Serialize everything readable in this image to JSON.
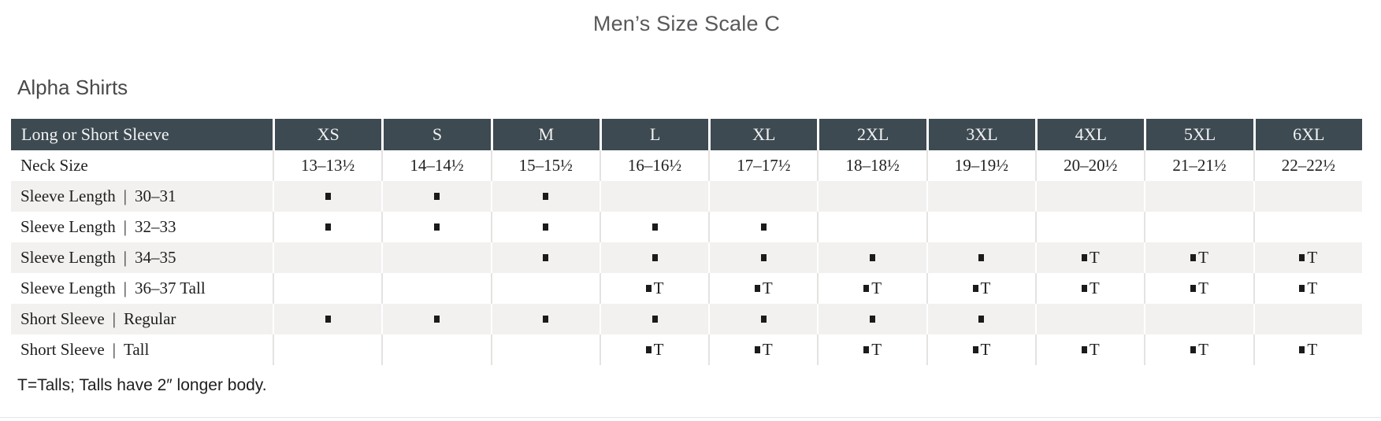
{
  "page": {
    "title": "Men’s Size Scale C",
    "section_heading": "Alpha Shirts",
    "footnote": "T=Talls; Talls have 2″ longer body."
  },
  "table": {
    "header": {
      "label": "Long or Short Sleeve",
      "sizes": [
        "XS",
        "S",
        "M",
        "L",
        "XL",
        "2XL",
        "3XL",
        "4XL",
        "5XL",
        "6XL"
      ]
    },
    "label_separator": "|",
    "marker": "▪",
    "tall_marker": "▪T",
    "rows": [
      {
        "label": "Neck Size",
        "qualifier": "",
        "cells": [
          "13–13½",
          "14–14½",
          "15–15½",
          "16–16½",
          "17–17½",
          "18–18½",
          "19–19½",
          "20–20½",
          "21–21½",
          "22–22½"
        ]
      },
      {
        "label": "Sleeve Length",
        "qualifier": "30–31",
        "cells": [
          "▪",
          "▪",
          "▪",
          "",
          "",
          "",
          "",
          "",
          "",
          ""
        ]
      },
      {
        "label": "Sleeve Length",
        "qualifier": "32–33",
        "cells": [
          "▪",
          "▪",
          "▪",
          "▪",
          "▪",
          "",
          "",
          "",
          "",
          ""
        ]
      },
      {
        "label": "Sleeve Length",
        "qualifier": "34–35",
        "cells": [
          "",
          "",
          "▪",
          "▪",
          "▪",
          "▪",
          "▪",
          "▪T",
          "▪T",
          "▪T"
        ]
      },
      {
        "label": "Sleeve Length",
        "qualifier": "36–37 Tall",
        "cells": [
          "",
          "",
          "",
          "▪T",
          "▪T",
          "▪T",
          "▪T",
          "▪T",
          "▪T",
          "▪T"
        ]
      },
      {
        "label": "Short Sleeve",
        "qualifier": "Regular",
        "cells": [
          "▪",
          "▪",
          "▪",
          "▪",
          "▪",
          "▪",
          "▪",
          "",
          "",
          ""
        ]
      },
      {
        "label": "Short Sleeve",
        "qualifier": "Tall",
        "cells": [
          "",
          "",
          "",
          "▪T",
          "▪T",
          "▪T",
          "▪T",
          "▪T",
          "▪T",
          "▪T"
        ]
      }
    ]
  },
  "colors": {
    "header_bg": "#3d4a52",
    "header_fg": "#f2f3f3",
    "row_stripe": "#f2f1ef",
    "grid_line": "#e4e3e1",
    "title_color": "#58595b",
    "heading_color": "#4a4a4c",
    "text_color": "#1e1e1e",
    "bottom_rule": "#e4e4e4"
  }
}
